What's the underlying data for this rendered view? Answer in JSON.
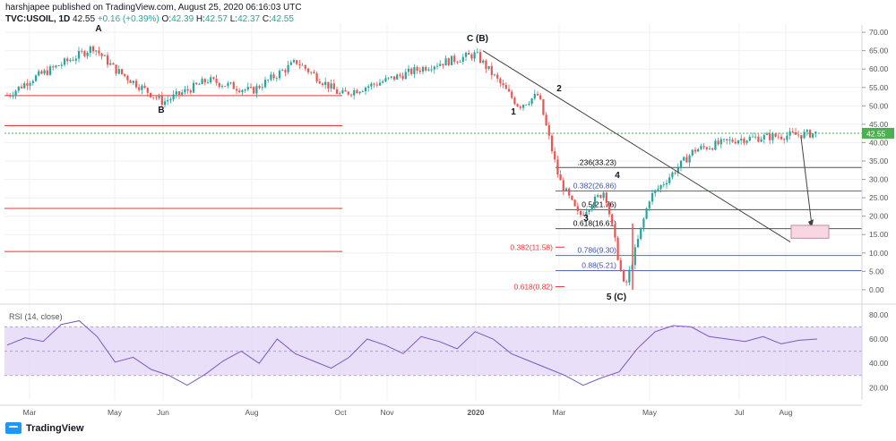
{
  "header": {
    "publisher_line": "harshjapee published on TradingView.com, August 25, 2020 06:16:03 UTC",
    "symbol": "TVC:USOIL, 1D",
    "last": "42.55",
    "change": "+0.16 (+0.39%)",
    "o_label": "O:",
    "o_value": "42.39",
    "h_label": "H:",
    "h_value": "42.57",
    "l_label": "L:",
    "l_value": "42.37",
    "c_label": "C:",
    "c_value": "42.55"
  },
  "footer": {
    "brand": "TradingView"
  },
  "chart_data": {
    "type": "candlestick",
    "price_axis": {
      "ticks": [
        "70.00",
        "65.00",
        "60.00",
        "55.00",
        "50.00",
        "45.00",
        "40.00",
        "35.00",
        "30.00",
        "25.00",
        "20.00",
        "15.00",
        "10.00",
        "5.00",
        "0.00"
      ],
      "ylim": [
        -1,
        71
      ],
      "last_price_label": "42.55"
    },
    "time_axis": {
      "labels": [
        "Mar",
        "May",
        "Jun",
        "Aug",
        "Oct",
        "Nov",
        "2020",
        "Mar",
        "May",
        "Jul",
        "Aug"
      ]
    },
    "price_path": [
      {
        "month": "Feb 2019",
        "price": 53
      },
      {
        "month": "Mar 2019",
        "price": 57
      },
      {
        "month": "Apr 2019",
        "price": 63
      },
      {
        "month": "Apr 2019",
        "price": 66
      },
      {
        "month": "May 2019",
        "price": 60
      },
      {
        "month": "Jun 2019",
        "price": 51
      },
      {
        "month": "Jul 2019",
        "price": 57
      },
      {
        "month": "Aug 2019",
        "price": 54
      },
      {
        "month": "Sep 2019",
        "price": 62
      },
      {
        "month": "Oct 2019",
        "price": 53
      },
      {
        "month": "Nov 2019",
        "price": 57
      },
      {
        "month": "Dec 2019",
        "price": 61
      },
      {
        "month": "Jan 2020",
        "price": 64
      },
      {
        "month": "Feb 2020",
        "price": 50
      },
      {
        "month": "Feb 2020",
        "price": 53
      },
      {
        "month": "Mar 2020",
        "price": 30
      },
      {
        "month": "Mar 2020",
        "price": 20
      },
      {
        "month": "Apr 2020",
        "price": 27
      },
      {
        "month": "Apr 2020",
        "price": 0
      },
      {
        "month": "May 2020",
        "price": 25
      },
      {
        "month": "Jun 2020",
        "price": 38
      },
      {
        "month": "Jul 2020",
        "price": 41
      },
      {
        "month": "Aug 2020",
        "price": 42.55
      }
    ],
    "wave_labels": [
      "A",
      "B",
      "C (B)",
      "1",
      "2",
      "3",
      "4",
      "5 (C)"
    ],
    "fib_levels": [
      {
        "label": ".236(33.23)",
        "value": 33.23,
        "color": "#000000"
      },
      {
        "label": "0.382(26.86)",
        "value": 26.86,
        "color": "#3f51b5"
      },
      {
        "label": "0.5(21.76)",
        "value": 21.76,
        "color": "#000000"
      },
      {
        "label": "0.618(16.61)",
        "value": 16.61,
        "color": "#000000"
      },
      {
        "label": "0.786(9.30)",
        "value": 9.3,
        "color": "#3f51b5"
      },
      {
        "label": "0.88(5.21)",
        "value": 5.21,
        "color": "#3f51b5"
      }
    ],
    "red_levels": [
      {
        "label": "0.382(11.58)",
        "value": 11.58
      },
      {
        "label": "0.618(0.82)",
        "value": 0.82
      }
    ],
    "left_red_lines": [
      52.8,
      44.6,
      22.1,
      10.4
    ],
    "rsi": {
      "title": "RSI (14, close)",
      "ticks": [
        "80.00",
        "60.00",
        "40.00",
        "20.00"
      ],
      "ylim": [
        10,
        85
      ],
      "band": [
        30,
        70
      ],
      "values": [
        55,
        61,
        58,
        72,
        75,
        62,
        41,
        45,
        35,
        30,
        22,
        31,
        42,
        50,
        40,
        60,
        48,
        42,
        36,
        45,
        60,
        55,
        48,
        62,
        58,
        52,
        66,
        60,
        48,
        42,
        36,
        30,
        22,
        28,
        33,
        52,
        66,
        71,
        70,
        62,
        60,
        58,
        62,
        56,
        59,
        60
      ]
    },
    "colors": {
      "up": "#26a69a",
      "down": "#ef5350",
      "rsi": "#7e57c2",
      "rsi_band": "#e1d4f5",
      "last_price": "#4caf50"
    }
  }
}
